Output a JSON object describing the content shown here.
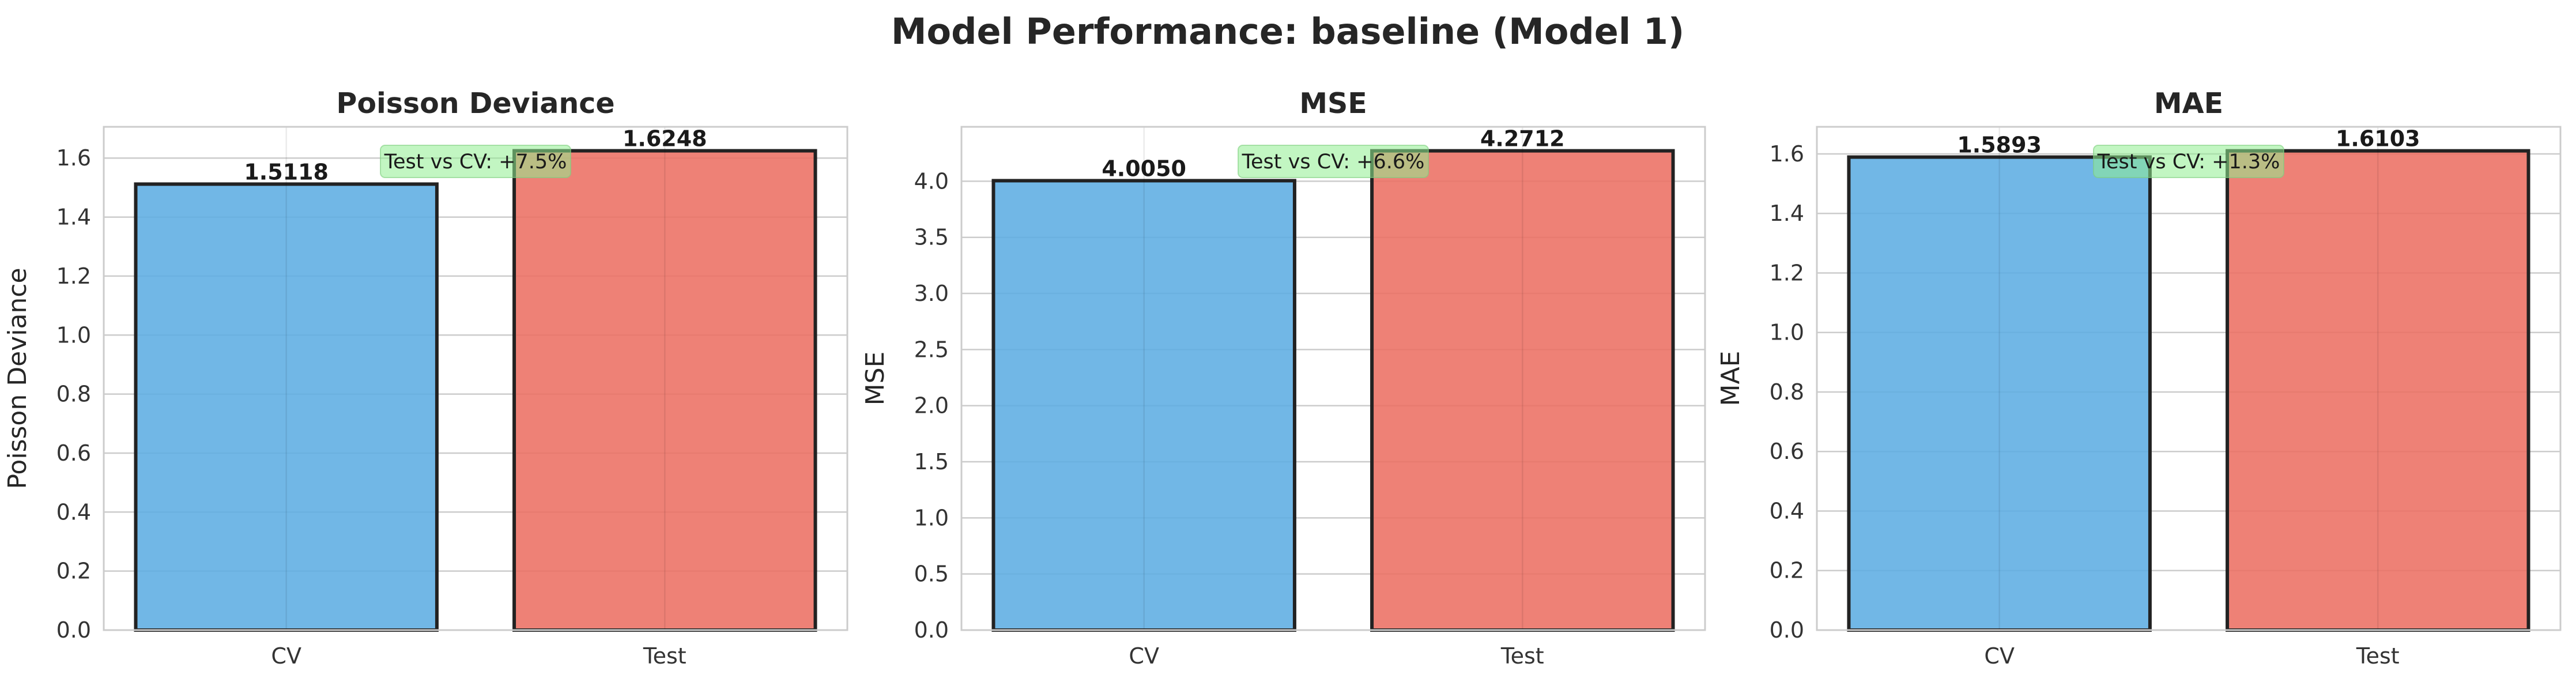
{
  "figure_title": "Model Performance: baseline (Model 1)",
  "colors": {
    "cv": "#5dade2",
    "test": "#ec7063",
    "annotation_box": "#90ee90",
    "grid": "#cccccc",
    "spine": "#cccccc",
    "bar_edge": "#222222"
  },
  "chart_data": [
    {
      "type": "bar",
      "title": "Poisson Deviance",
      "xlabel": "",
      "ylabel": "Poisson Deviance",
      "categories": [
        "CV",
        "Test"
      ],
      "values": [
        1.5118,
        1.6248
      ],
      "value_labels": [
        "1.5118",
        "1.6248"
      ],
      "ylim": [
        0,
        1.706
      ],
      "yticks": [
        0.0,
        0.2,
        0.4,
        0.6,
        0.8,
        1.0,
        1.2,
        1.4,
        1.6
      ],
      "ytick_labels": [
        "0.0",
        "0.2",
        "0.4",
        "0.6",
        "0.8",
        "1.0",
        "1.2",
        "1.4",
        "1.6"
      ],
      "annotation": "Test vs CV: +7.5%",
      "grid": true
    },
    {
      "type": "bar",
      "title": "MSE",
      "xlabel": "",
      "ylabel": "MSE",
      "categories": [
        "CV",
        "Test"
      ],
      "values": [
        4.005,
        4.2712
      ],
      "value_labels": [
        "4.0050",
        "4.2712"
      ],
      "ylim": [
        0,
        4.485
      ],
      "yticks": [
        0.0,
        0.5,
        1.0,
        1.5,
        2.0,
        2.5,
        3.0,
        3.5,
        4.0
      ],
      "ytick_labels": [
        "0.0",
        "0.5",
        "1.0",
        "1.5",
        "2.0",
        "2.5",
        "3.0",
        "3.5",
        "4.0"
      ],
      "annotation": "Test vs CV: +6.6%",
      "grid": true
    },
    {
      "type": "bar",
      "title": "MAE",
      "xlabel": "",
      "ylabel": "MAE",
      "categories": [
        "CV",
        "Test"
      ],
      "values": [
        1.5893,
        1.6103
      ],
      "value_labels": [
        "1.5893",
        "1.6103"
      ],
      "ylim": [
        0,
        1.691
      ],
      "yticks": [
        0.0,
        0.2,
        0.4,
        0.6,
        0.8,
        1.0,
        1.2,
        1.4,
        1.6
      ],
      "ytick_labels": [
        "0.0",
        "0.2",
        "0.4",
        "0.6",
        "0.8",
        "1.0",
        "1.2",
        "1.4",
        "1.6"
      ],
      "annotation": "Test vs CV: +1.3%",
      "grid": true
    }
  ]
}
